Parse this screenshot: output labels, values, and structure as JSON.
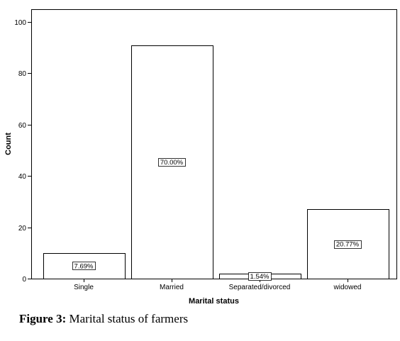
{
  "chart_data": {
    "type": "bar",
    "categories": [
      "Single",
      "Married",
      "Separated/divorced",
      "widowed"
    ],
    "values": [
      10,
      91,
      2,
      27
    ],
    "data_labels": [
      "7.69%",
      "70.00%",
      "1.54%",
      "20.77%"
    ],
    "xlabel": "Marital status",
    "ylabel": "Count",
    "ylim": [
      0,
      105
    ],
    "yticks": [
      0,
      20,
      40,
      60,
      80,
      100
    ],
    "grid": false,
    "bar_fill": "#ffffff",
    "bar_stroke": "#000000"
  },
  "caption": {
    "label": "Figure 3:",
    "text": " Marital status of farmers"
  }
}
